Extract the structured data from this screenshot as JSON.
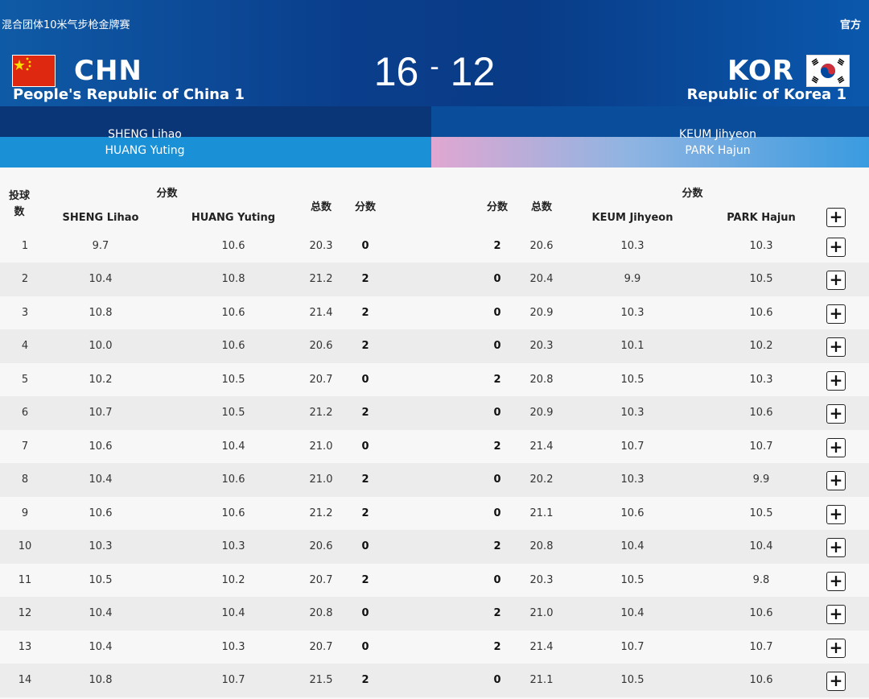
{
  "header": {
    "event_title": "混合团体10米气步枪金牌赛",
    "official_label": "官方",
    "score_left": "16",
    "score_separator": "-",
    "score_right": "12",
    "left_team": {
      "code": "CHN",
      "name": "People's Republic of China 1",
      "players": [
        "SHENG Lihao",
        "HUANG Yuting"
      ]
    },
    "right_team": {
      "code": "KOR",
      "name": "Republic of Korea 1",
      "players": [
        "KEUM Jihyeon",
        "PARK Hajun"
      ]
    }
  },
  "table": {
    "headers": {
      "shot": "投球数",
      "points_group_left": "分数",
      "total_left": "总数",
      "pts_left": "分数",
      "pts_right": "分数",
      "total_right": "总数",
      "points_group_right": "分数",
      "player_a": "SHENG Lihao",
      "player_b": "HUANG Yuting",
      "player_c": "KEUM Jihyeon",
      "player_d": "PARK Hajun"
    },
    "rows": [
      {
        "idx": "1",
        "a": "9.7",
        "b": "10.6",
        "tl": "20.3",
        "pl": "0",
        "pr": "2",
        "tr": "20.6",
        "c": "10.3",
        "d": "10.3"
      },
      {
        "idx": "2",
        "a": "10.4",
        "b": "10.8",
        "tl": "21.2",
        "pl": "2",
        "pr": "0",
        "tr": "20.4",
        "c": "9.9",
        "d": "10.5"
      },
      {
        "idx": "3",
        "a": "10.8",
        "b": "10.6",
        "tl": "21.4",
        "pl": "2",
        "pr": "0",
        "tr": "20.9",
        "c": "10.3",
        "d": "10.6"
      },
      {
        "idx": "4",
        "a": "10.0",
        "b": "10.6",
        "tl": "20.6",
        "pl": "2",
        "pr": "0",
        "tr": "20.3",
        "c": "10.1",
        "d": "10.2"
      },
      {
        "idx": "5",
        "a": "10.2",
        "b": "10.5",
        "tl": "20.7",
        "pl": "0",
        "pr": "2",
        "tr": "20.8",
        "c": "10.5",
        "d": "10.3"
      },
      {
        "idx": "6",
        "a": "10.7",
        "b": "10.5",
        "tl": "21.2",
        "pl": "2",
        "pr": "0",
        "tr": "20.9",
        "c": "10.3",
        "d": "10.6"
      },
      {
        "idx": "7",
        "a": "10.6",
        "b": "10.4",
        "tl": "21.0",
        "pl": "0",
        "pr": "2",
        "tr": "21.4",
        "c": "10.7",
        "d": "10.7"
      },
      {
        "idx": "8",
        "a": "10.4",
        "b": "10.6",
        "tl": "21.0",
        "pl": "2",
        "pr": "0",
        "tr": "20.2",
        "c": "10.3",
        "d": "9.9"
      },
      {
        "idx": "9",
        "a": "10.6",
        "b": "10.6",
        "tl": "21.2",
        "pl": "2",
        "pr": "0",
        "tr": "21.1",
        "c": "10.6",
        "d": "10.5"
      },
      {
        "idx": "10",
        "a": "10.3",
        "b": "10.3",
        "tl": "20.6",
        "pl": "0",
        "pr": "2",
        "tr": "20.8",
        "c": "10.4",
        "d": "10.4"
      },
      {
        "idx": "11",
        "a": "10.5",
        "b": "10.2",
        "tl": "20.7",
        "pl": "2",
        "pr": "0",
        "tr": "20.3",
        "c": "10.5",
        "d": "9.8"
      },
      {
        "idx": "12",
        "a": "10.4",
        "b": "10.4",
        "tl": "20.8",
        "pl": "0",
        "pr": "2",
        "tr": "21.0",
        "c": "10.4",
        "d": "10.6"
      },
      {
        "idx": "13",
        "a": "10.4",
        "b": "10.3",
        "tl": "20.7",
        "pl": "0",
        "pr": "2",
        "tr": "21.4",
        "c": "10.7",
        "d": "10.7"
      },
      {
        "idx": "14",
        "a": "10.8",
        "b": "10.7",
        "tl": "21.5",
        "pl": "2",
        "pr": "0",
        "tr": "21.1",
        "c": "10.5",
        "d": "10.6"
      }
    ],
    "expand_icon": "plus-icon"
  }
}
